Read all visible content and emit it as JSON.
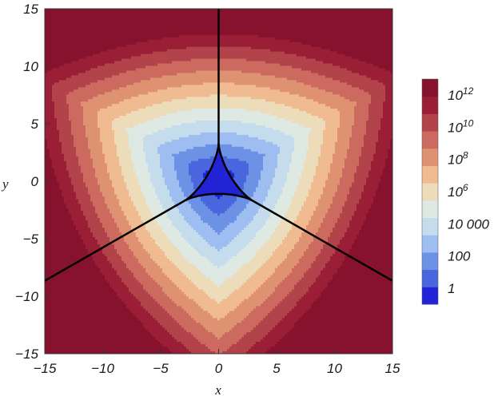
{
  "chart_data": {
    "type": "contour",
    "xlabel": "x",
    "ylabel": "y",
    "xlim": [
      -15,
      15
    ],
    "ylim": [
      -15,
      15
    ],
    "x_ticks": [
      {
        "value": -15,
        "label": "−15"
      },
      {
        "value": -10,
        "label": "−10"
      },
      {
        "value": -5,
        "label": "−5"
      },
      {
        "value": 0,
        "label": "0"
      },
      {
        "value": 5,
        "label": "5"
      },
      {
        "value": 10,
        "label": "10"
      },
      {
        "value": 15,
        "label": "15"
      }
    ],
    "y_ticks": [
      {
        "value": -15,
        "label": "−15"
      },
      {
        "value": -10,
        "label": "−10"
      },
      {
        "value": -5,
        "label": "−5"
      },
      {
        "value": 0,
        "label": "0"
      },
      {
        "value": 5,
        "label": "5"
      },
      {
        "value": 10,
        "label": "10"
      },
      {
        "value": 15,
        "label": "15"
      }
    ],
    "color_levels": [
      "#2323d6",
      "#4a66de",
      "#6c92e6",
      "#9ebdf0",
      "#c5dcec",
      "#dde9e2",
      "#ecdcba",
      "#f0bb91",
      "#df9272",
      "#cd6a60",
      "#b2434a",
      "#9a1f36",
      "#86122e"
    ],
    "colorbar_labels": [
      {
        "base": "10",
        "exp": "12",
        "level": 12
      },
      {
        "base": "10",
        "exp": "10",
        "level": 10
      },
      {
        "base": "10",
        "exp": "8",
        "level": 8
      },
      {
        "base": "10",
        "exp": "6",
        "level": 6
      },
      {
        "base": "10 000",
        "exp": "",
        "level": 4
      },
      {
        "base": "100",
        "exp": "",
        "level": 2
      },
      {
        "base": "1",
        "exp": "",
        "level": 0
      }
    ],
    "boundary_color": "#000000",
    "contour_line_color": "#ffffff",
    "grid": false
  }
}
